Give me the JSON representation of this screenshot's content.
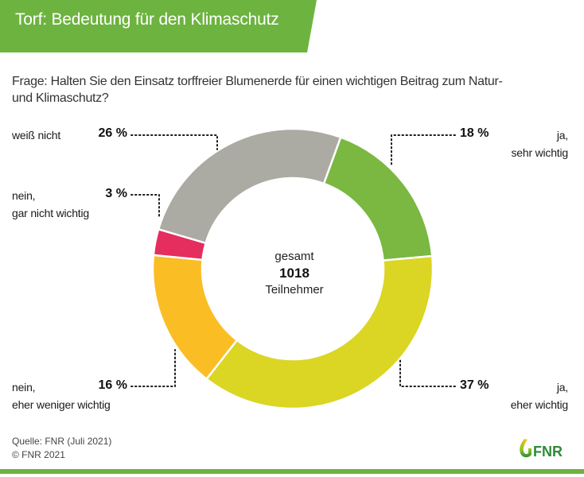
{
  "header": {
    "title": "Torf: Bedeutung für den Klimaschutz"
  },
  "question": "Frage: Halten Sie den Einsatz torffreier Blumenerde für einen wichtigen Beitrag zum Natur- und Klimaschutz?",
  "colors": {
    "brand_green": "#6db33f",
    "text": "#1a1a1a"
  },
  "chart_data": {
    "type": "pie",
    "variant": "donut",
    "title": "Torf: Bedeutung für den Klimaschutz",
    "unit": "%",
    "center": {
      "top": "gesamt",
      "value": "1018",
      "bottom": "Teilnehmer"
    },
    "slices": [
      {
        "label_line1": "ja,",
        "label_line2": "sehr wichtig",
        "value": 18,
        "value_label": "18 %",
        "color": "#7ab842"
      },
      {
        "label_line1": "ja,",
        "label_line2": "eher wichtig",
        "value": 37,
        "value_label": "37 %",
        "color": "#dbd524"
      },
      {
        "label_line1": "nein,",
        "label_line2": "eher weniger wichtig",
        "value": 16,
        "value_label": "16 %",
        "color": "#fbbd24"
      },
      {
        "label_line1": "nein,",
        "label_line2": "gar nicht wichtig",
        "value": 3,
        "value_label": "3 %",
        "color": "#e52e5e"
      },
      {
        "label_line1": "weiß nicht",
        "label_line2": "",
        "value": 26,
        "value_label": "26 %",
        "color": "#abaaa3"
      }
    ],
    "start_angle_deg": 20,
    "direction": "clockwise"
  },
  "footer": {
    "source": "Quelle: FNR (Juli 2021)",
    "copyright": "© FNR 2021"
  },
  "logo": {
    "text": "FNR"
  }
}
